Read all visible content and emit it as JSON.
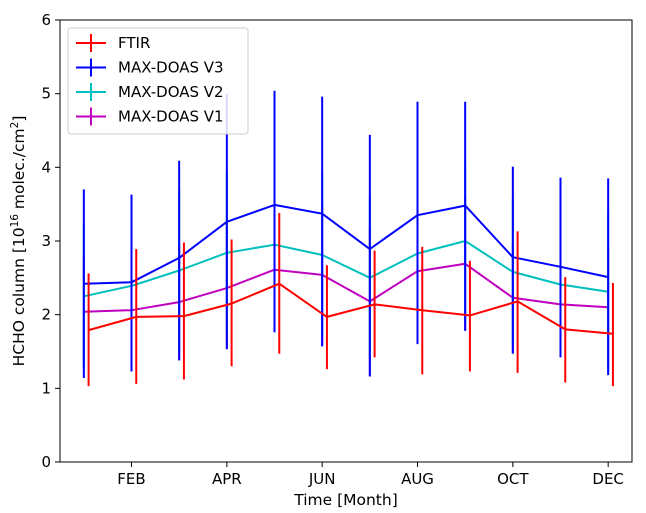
{
  "chart_data": {
    "type": "line",
    "xlabel": "Time [Month]",
    "ylabel_main": "HCHO column [10",
    "ylabel_exp": "16",
    "ylabel_mid": " molec./cm",
    "ylabel_exp2": "2",
    "ylabel_end": "]",
    "xlim": [
      0.5,
      12.5
    ],
    "ylim": [
      0,
      6
    ],
    "y_ticks": [
      "0",
      "1",
      "2",
      "3",
      "4",
      "5",
      "6"
    ],
    "x_ticks": [
      {
        "value": 2,
        "label": "FEB"
      },
      {
        "value": 4,
        "label": "APR"
      },
      {
        "value": 6,
        "label": "JUN"
      },
      {
        "value": 8,
        "label": "AUG"
      },
      {
        "value": 10,
        "label": "OCT"
      },
      {
        "value": 12,
        "label": "DEC"
      }
    ],
    "legend_position": "top-left",
    "series": [
      {
        "name": "FTIR",
        "color": "#ff0000",
        "x": [
          1.1,
          2.1,
          3.1,
          4.1,
          5.1,
          6.1,
          7.1,
          8.1,
          9.1,
          10.1,
          11.1,
          12.1
        ],
        "values": [
          1.79,
          1.97,
          1.98,
          2.15,
          2.42,
          1.97,
          2.14,
          2.06,
          1.99,
          2.18,
          1.8,
          1.74
        ],
        "err_low": [
          1.03,
          1.06,
          1.12,
          1.3,
          1.47,
          1.26,
          1.42,
          1.19,
          1.23,
          1.21,
          1.08,
          1.03
        ],
        "err_high": [
          2.56,
          2.89,
          2.98,
          3.02,
          3.38,
          2.67,
          2.87,
          2.92,
          2.73,
          3.13,
          2.51,
          2.43
        ]
      },
      {
        "name": "MAX-DOAS V3",
        "color": "#0000ff",
        "x": [
          1,
          2,
          3,
          4,
          5,
          6,
          7,
          8,
          9,
          10,
          11,
          12
        ],
        "values": [
          2.42,
          2.44,
          2.77,
          3.26,
          3.49,
          3.37,
          2.89,
          3.35,
          3.48,
          2.78,
          2.65,
          2.51
        ],
        "err_low": [
          1.14,
          1.23,
          1.38,
          1.53,
          1.76,
          1.57,
          1.16,
          1.6,
          1.78,
          1.47,
          1.42,
          1.18
        ],
        "err_high": [
          3.7,
          3.63,
          4.09,
          5.0,
          5.04,
          4.96,
          4.44,
          4.89,
          4.89,
          4.01,
          3.86,
          3.85
        ]
      },
      {
        "name": "MAX-DOAS V2",
        "color": "#00bfbf",
        "x": [
          1,
          2,
          3,
          4,
          5,
          6,
          7,
          8,
          9,
          10,
          11,
          12
        ],
        "values": [
          2.25,
          2.39,
          2.6,
          2.84,
          2.95,
          2.81,
          2.5,
          2.83,
          3.0,
          2.58,
          2.41,
          2.31
        ],
        "err_low": [
          1.28,
          1.36,
          1.51,
          1.75,
          1.8,
          1.71,
          1.4,
          1.73,
          1.9,
          1.58,
          1.45,
          1.21
        ],
        "err_high": [
          3.22,
          3.42,
          3.69,
          3.93,
          4.1,
          3.91,
          3.59,
          3.93,
          4.09,
          3.58,
          3.37,
          3.41
        ]
      },
      {
        "name": "MAX-DOAS V1",
        "color": "#bf00bf",
        "x": [
          1,
          2,
          3,
          4,
          5,
          6,
          7,
          8,
          9,
          10,
          11,
          12
        ],
        "values": [
          2.04,
          2.06,
          2.17,
          2.36,
          2.61,
          2.54,
          2.18,
          2.59,
          2.69,
          2.23,
          2.14,
          2.1
        ],
        "err_low": [
          1.29,
          1.23,
          1.38,
          1.54,
          1.86,
          1.58,
          1.17,
          1.61,
          1.79,
          1.48,
          1.43,
          1.3
        ],
        "err_high": [
          2.79,
          2.87,
          2.95,
          3.18,
          3.36,
          3.5,
          3.2,
          3.56,
          3.59,
          2.98,
          2.85,
          2.9
        ]
      }
    ]
  }
}
